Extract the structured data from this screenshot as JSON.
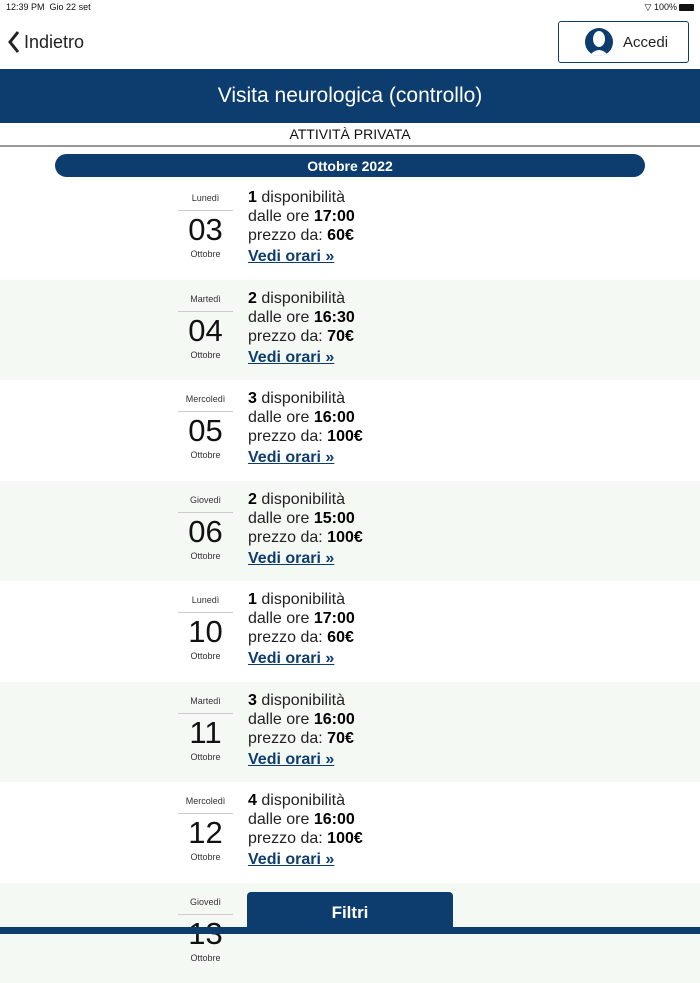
{
  "status": {
    "time": "12:39 PM",
    "date": "Gio 22 set",
    "battery": "100%"
  },
  "nav": {
    "back": "Indietro",
    "login": "Accedi"
  },
  "header": {
    "title": "Visita neurologica (controllo)",
    "subtitle": "ATTIVITÀ PRIVATA",
    "month": "Ottobre 2022"
  },
  "labels": {
    "availability": "disponibilità",
    "from": "dalle ore",
    "price": "prezzo da:",
    "link": "Vedi orari »"
  },
  "days": [
    {
      "weekday": "Lunedì",
      "day": "03",
      "month": "Ottobre",
      "count": "1",
      "time": "17:00",
      "price": "60€"
    },
    {
      "weekday": "Martedì",
      "day": "04",
      "month": "Ottobre",
      "count": "2",
      "time": "16:30",
      "price": "70€"
    },
    {
      "weekday": "Mercoledì",
      "day": "05",
      "month": "Ottobre",
      "count": "3",
      "time": "16:00",
      "price": "100€"
    },
    {
      "weekday": "Giovedì",
      "day": "06",
      "month": "Ottobre",
      "count": "2",
      "time": "15:00",
      "price": "100€"
    },
    {
      "weekday": "Lunedì",
      "day": "10",
      "month": "Ottobre",
      "count": "1",
      "time": "17:00",
      "price": "60€"
    },
    {
      "weekday": "Martedì",
      "day": "11",
      "month": "Ottobre",
      "count": "3",
      "time": "16:00",
      "price": "70€"
    },
    {
      "weekday": "Mercoledì",
      "day": "12",
      "month": "Ottobre",
      "count": "4",
      "time": "16:00",
      "price": "100€"
    },
    {
      "weekday": "Giovedì",
      "day": "13",
      "month": "Ottobre",
      "count": "",
      "time": "",
      "price": ""
    }
  ],
  "filters": "Filtri",
  "colors": {
    "primary": "#0d3d6e",
    "row_alt": "#f4f9f4"
  }
}
